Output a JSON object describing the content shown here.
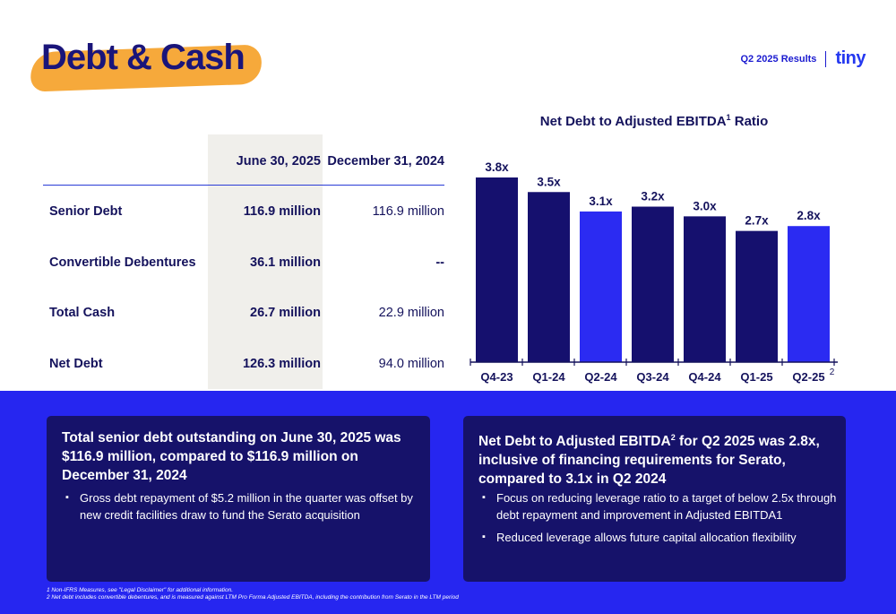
{
  "header": {
    "title": "Debt & Cash",
    "results_label": "Q2 2025 Results",
    "logo_text": "tiny"
  },
  "table": {
    "columns": [
      "June 30, 2025",
      "December 31, 2024"
    ],
    "rows": [
      {
        "label": "Senior Debt",
        "june": "116.9 million",
        "dec": "116.9 million"
      },
      {
        "label": "Convertible Debentures",
        "june": "36.1 million",
        "dec": "--"
      },
      {
        "label": "Total Cash",
        "june": "26.7 million",
        "dec": "22.9 million"
      },
      {
        "label": "Net Debt",
        "june": "126.3 million",
        "dec": "94.0 million"
      }
    ]
  },
  "chart_data": {
    "type": "bar",
    "title": "Net Debt to Adjusted EBITDA",
    "title_superscript": "1",
    "title_suffix": " Ratio",
    "categories": [
      "Q4-23",
      "Q1-24",
      "Q2-24",
      "Q3-24",
      "Q4-24",
      "Q1-25",
      "Q2-25"
    ],
    "category_superscripts": [
      "",
      "",
      "",
      "",
      "",
      "",
      "2"
    ],
    "values": [
      3.8,
      3.5,
      3.1,
      3.2,
      3.0,
      2.7,
      2.8
    ],
    "labels": [
      "3.8x",
      "3.5x",
      "3.1x",
      "3.2x",
      "3.0x",
      "2.7x",
      "2.8x"
    ],
    "bar_colors": [
      "#15106e",
      "#15106e",
      "#2b2bf2",
      "#15106e",
      "#15106e",
      "#15106e",
      "#2b2bf2"
    ],
    "ylim": [
      0,
      3.8
    ],
    "grid": false
  },
  "cards": {
    "left": {
      "title": "Total senior debt outstanding on June 30, 2025 was $116.9 million, compared to $116.9 million on December 31, 2024",
      "bullets": [
        "Gross debt repayment of $5.2 million in the quarter was offset by new credit facilities draw to fund the Serato acquisition"
      ]
    },
    "right": {
      "title_a": "Net Debt to Adjusted EBITDA",
      "title_sup": "2",
      "title_b": " for Q2 2025 was 2.8x, inclusive of financing requirements for Serato, compared to 3.1x in Q2 2024",
      "bullets": [
        "Focus on reducing leverage ratio to a target of below 2.5x through debt repayment and improvement in Adjusted EBITDA1",
        "Reduced leverage allows future capital allocation flexibility"
      ]
    }
  },
  "footnotes": [
    "1 Non-IFRS Measures, see \"Legal Disclaimer\" for additional information.",
    "2 Net debt includes convertible debentures, and is measured against LTM Pro Forma Adjusted EBITDA, including the contribution from Serato in the LTM period"
  ],
  "colors": {
    "navy": "#15106e",
    "blue": "#2b2bf2",
    "orange": "#f6a93b"
  }
}
